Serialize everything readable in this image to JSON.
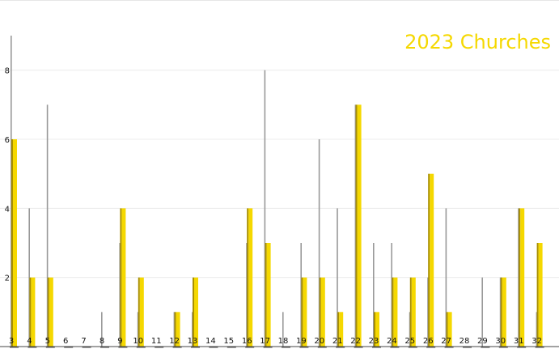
{
  "chart_data": {
    "type": "bar",
    "title": "",
    "xlabel": "",
    "ylabel": "",
    "categories": [
      "3",
      "4",
      "5",
      "6",
      "7",
      "8",
      "9",
      "10",
      "11",
      "12",
      "13",
      "14",
      "15",
      "16",
      "17",
      "18",
      "19",
      "20",
      "21",
      "22",
      "23",
      "24",
      "25",
      "26",
      "27",
      "28",
      "29",
      "30",
      "31",
      "32"
    ],
    "series": [
      {
        "name": "",
        "color": "#999999",
        "values": [
          9,
          4,
          7,
          0,
          0,
          1,
          3,
          1,
          0,
          1,
          1,
          0,
          0,
          3,
          8,
          1,
          3,
          6,
          4,
          7,
          3,
          3,
          1,
          2,
          4,
          0,
          2,
          2,
          4,
          1
        ]
      },
      {
        "name": "2023 Churches",
        "color": "#f5d800",
        "values": [
          6,
          2,
          2,
          0,
          0,
          0,
          4,
          2,
          0,
          1,
          2,
          0,
          0,
          4,
          3,
          0,
          2,
          2,
          1,
          7,
          1,
          2,
          2,
          5,
          1,
          0,
          0,
          2,
          4,
          3
        ]
      }
    ],
    "yticks": [
      2,
      4,
      6,
      8
    ],
    "ylim": [
      0,
      9
    ],
    "grid": true,
    "legend_position": "top-right"
  }
}
